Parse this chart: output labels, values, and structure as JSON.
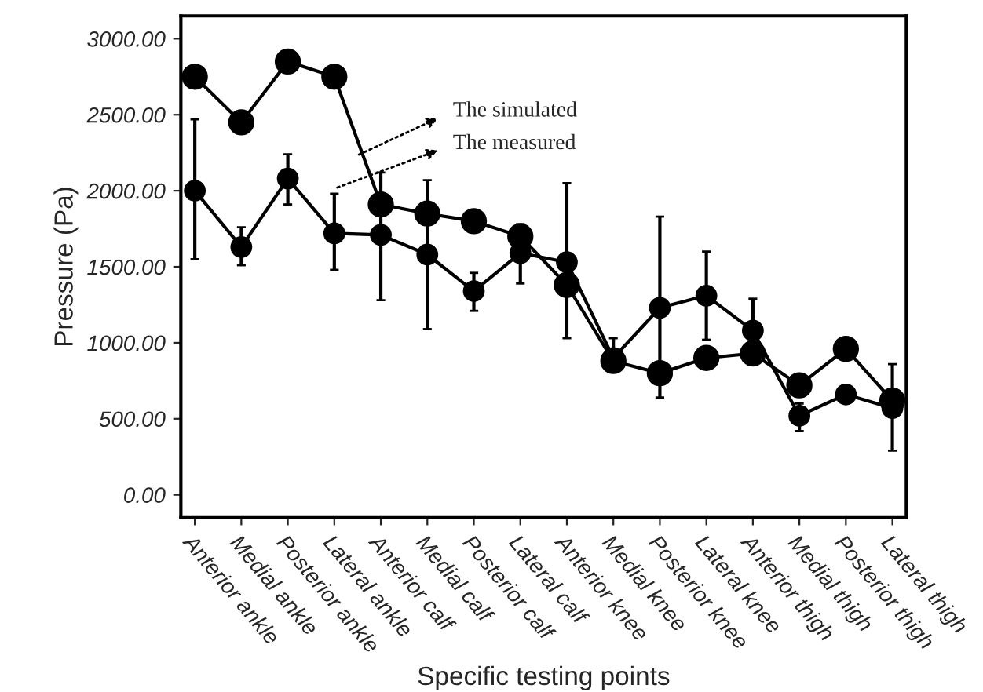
{
  "chart_data": {
    "type": "line",
    "xlabel": "Specific testing points",
    "ylabel": "Pressure (Pa)",
    "categories": [
      "Anterior ankle",
      "Medial ankle",
      "Posterior ankle",
      "Lateral ankle",
      "Anterior calf",
      "Medial calf",
      "Posterior calf",
      "Lateral calf",
      "Anterior knee",
      "Medial knee",
      "Posterior knee",
      "Lateral knee",
      "Anterior thigh",
      "Medial thigh",
      "Posterior thigh",
      "Lateral thigh"
    ],
    "series": [
      {
        "color": "#000000",
        "values": [
          2750,
          2450,
          2850,
          2750,
          1910,
          1850,
          1800,
          1700,
          1380,
          880,
          800,
          900,
          930,
          720,
          960,
          620
        ]
      },
      {
        "color": "#000000",
        "values": [
          2000,
          1630,
          2080,
          1720,
          1710,
          1580,
          1340,
          1590,
          1530,
          900,
          1230,
          1310,
          1080,
          520,
          660,
          570
        ],
        "errors": [
          [
            1550,
            2470
          ],
          [
            1510,
            1760
          ],
          [
            1910,
            2240
          ],
          [
            1480,
            1980
          ],
          [
            1280,
            2120
          ],
          [
            1090,
            2070
          ],
          [
            1210,
            1460
          ],
          [
            1390,
            1780
          ],
          [
            1030,
            2050
          ],
          [
            820,
            1030
          ],
          [
            640,
            1830
          ],
          [
            1020,
            1600
          ],
          [
            860,
            1290
          ],
          [
            420,
            600
          ],
          [
            610,
            720
          ],
          [
            290,
            860
          ]
        ]
      }
    ],
    "annotations": [
      "The simulated",
      "The measured"
    ],
    "ylim": [
      -150,
      3150
    ],
    "yticks": [
      {
        "value": 0,
        "label": "0.00"
      },
      {
        "value": 500,
        "label": "500.00"
      },
      {
        "value": 1000,
        "label": "1000.00"
      },
      {
        "value": 1500,
        "label": "1500.00"
      },
      {
        "value": 2000,
        "label": "2000.00"
      },
      {
        "value": 2500,
        "label": "2500.00"
      },
      {
        "value": 3000,
        "label": "3000.00"
      }
    ],
    "grid": false,
    "legend": false,
    "marker": "circle",
    "line_style": "solid"
  }
}
